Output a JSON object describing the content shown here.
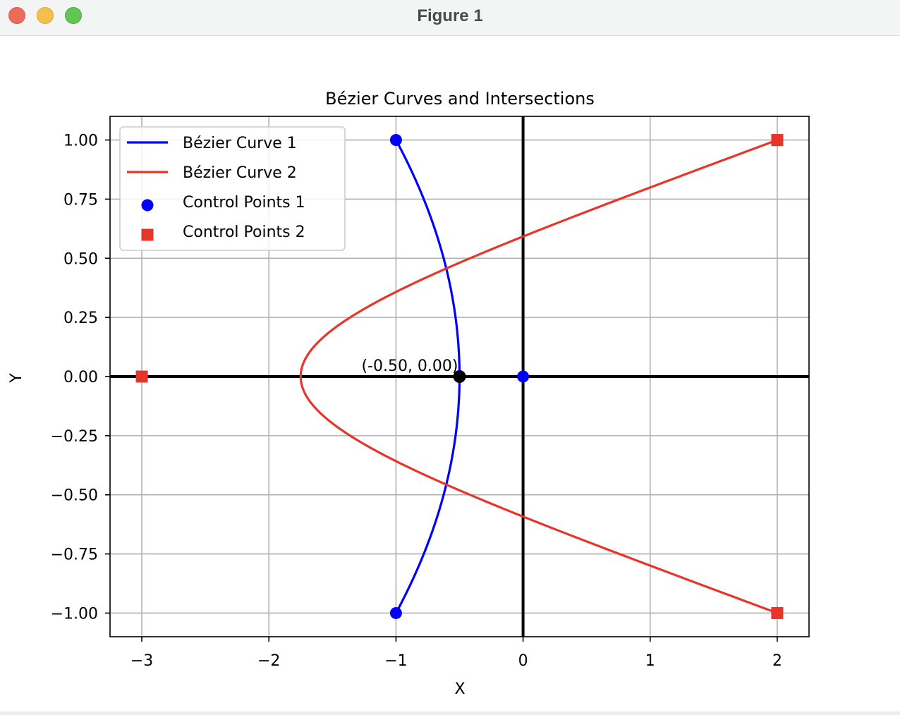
{
  "window": {
    "title": "Figure 1"
  },
  "chart_data": {
    "type": "line",
    "title": "Bézier Curves and Intersections",
    "xlabel": "X",
    "ylabel": "Y",
    "xlim": [
      -3.25,
      2.25
    ],
    "ylim": [
      -1.1,
      1.1
    ],
    "xticks": [
      -3,
      -2,
      -1,
      0,
      1,
      2
    ],
    "xtick_labels": [
      "−3",
      "−2",
      "−1",
      "0",
      "1",
      "2"
    ],
    "yticks": [
      1.0,
      0.75,
      0.5,
      0.25,
      0.0,
      -0.25,
      -0.5,
      -0.75,
      -1.0
    ],
    "ytick_labels": [
      "1.00",
      "0.75",
      "0.50",
      "0.25",
      "0.00",
      "−0.25",
      "−0.50",
      "−0.75",
      "−1.00"
    ],
    "grid": true,
    "legend_position": "upper-left",
    "series": [
      {
        "name": "Bézier Curve 1",
        "kind": "quadratic-bezier",
        "color": "#0000ff",
        "control_points": [
          [
            -1,
            1
          ],
          [
            0,
            0
          ],
          [
            -1,
            -1
          ]
        ]
      },
      {
        "name": "Bézier Curve 2",
        "kind": "cubic-bezier",
        "color": "#e8352a",
        "control_points": [
          [
            2,
            1
          ],
          [
            -3,
            0
          ],
          [
            -3,
            0
          ],
          [
            2,
            -1
          ]
        ]
      }
    ],
    "scatter": [
      {
        "name": "Control Points 1",
        "marker": "circle",
        "color": "#0000ff",
        "points": [
          [
            -1,
            1
          ],
          [
            0,
            0
          ],
          [
            -1,
            -1
          ]
        ]
      },
      {
        "name": "Control Points 2",
        "marker": "square",
        "color": "#e8352a",
        "points": [
          [
            2,
            1
          ],
          [
            -3,
            0
          ],
          [
            2,
            -1
          ]
        ]
      }
    ],
    "reference_lines": {
      "x": 0,
      "y": 0,
      "color": "#000000"
    },
    "intersections": [
      {
        "x": -0.5,
        "y": 0.0,
        "label": "(-0.50, 0.00)",
        "color": "#000000"
      }
    ]
  }
}
